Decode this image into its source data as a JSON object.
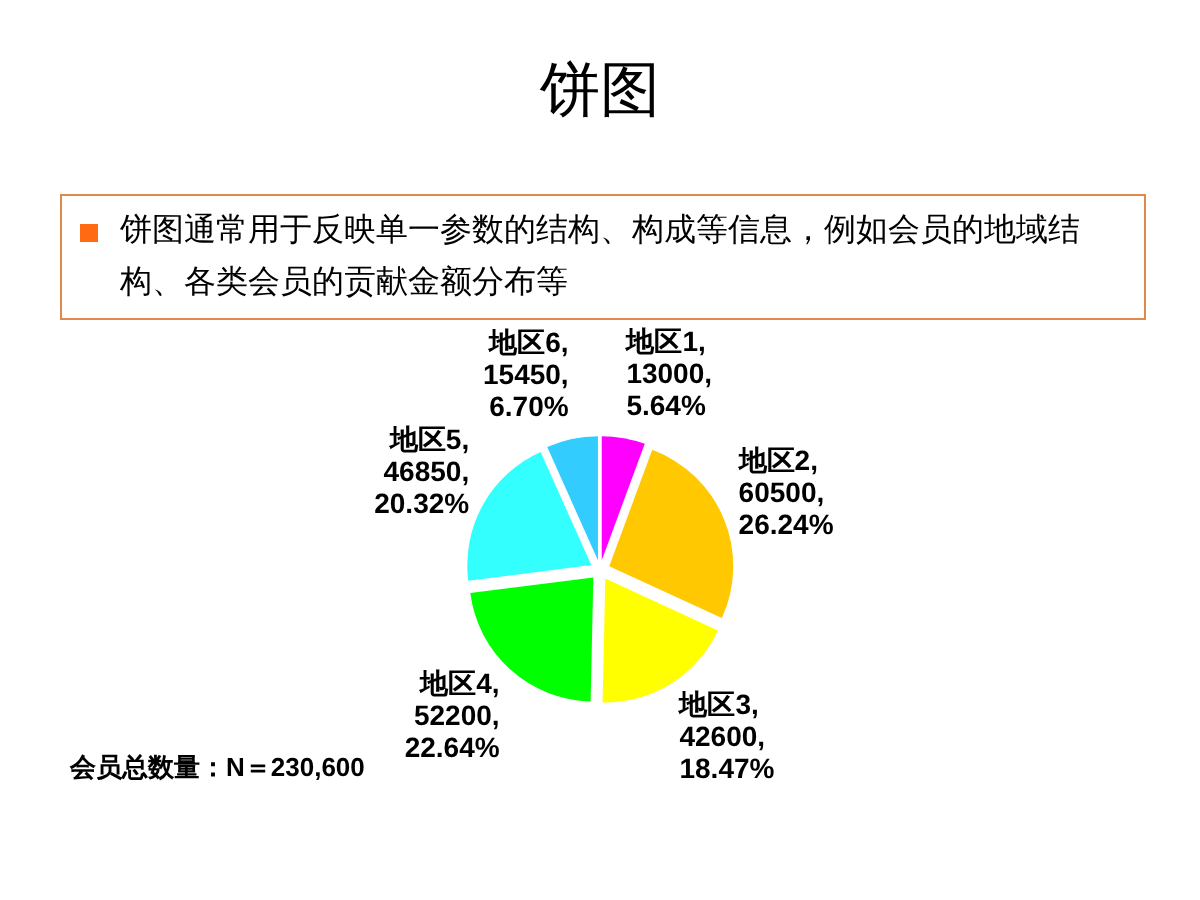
{
  "chart_data": {
    "type": "pie",
    "title": "饼图",
    "subtitle": "饼图通常用于反映单一参数的结构、构成等信息，例如会员的地域结构、各类会员的贡献金额分布等",
    "categories": [
      "地区1",
      "地区2",
      "地区3",
      "地区4",
      "地区5",
      "地区6"
    ],
    "values": [
      13000,
      60500,
      42600,
      52200,
      46850,
      15450
    ],
    "colors": [
      "#ff00ff",
      "#ffc800",
      "#ffff00",
      "#00ff00",
      "#33ffff",
      "#33ccff"
    ],
    "value_labels": [
      ",\n13000,\n5.64%",
      ",\n60500,\n26.24%",
      ",\n42600,\n18.47%",
      ",\n52200,\n22.64%",
      ",\n46850,\n20.32%",
      ",\n15450,\n6.70%"
    ],
    "annotations": [
      "会员总数量：N＝230,600"
    ]
  }
}
